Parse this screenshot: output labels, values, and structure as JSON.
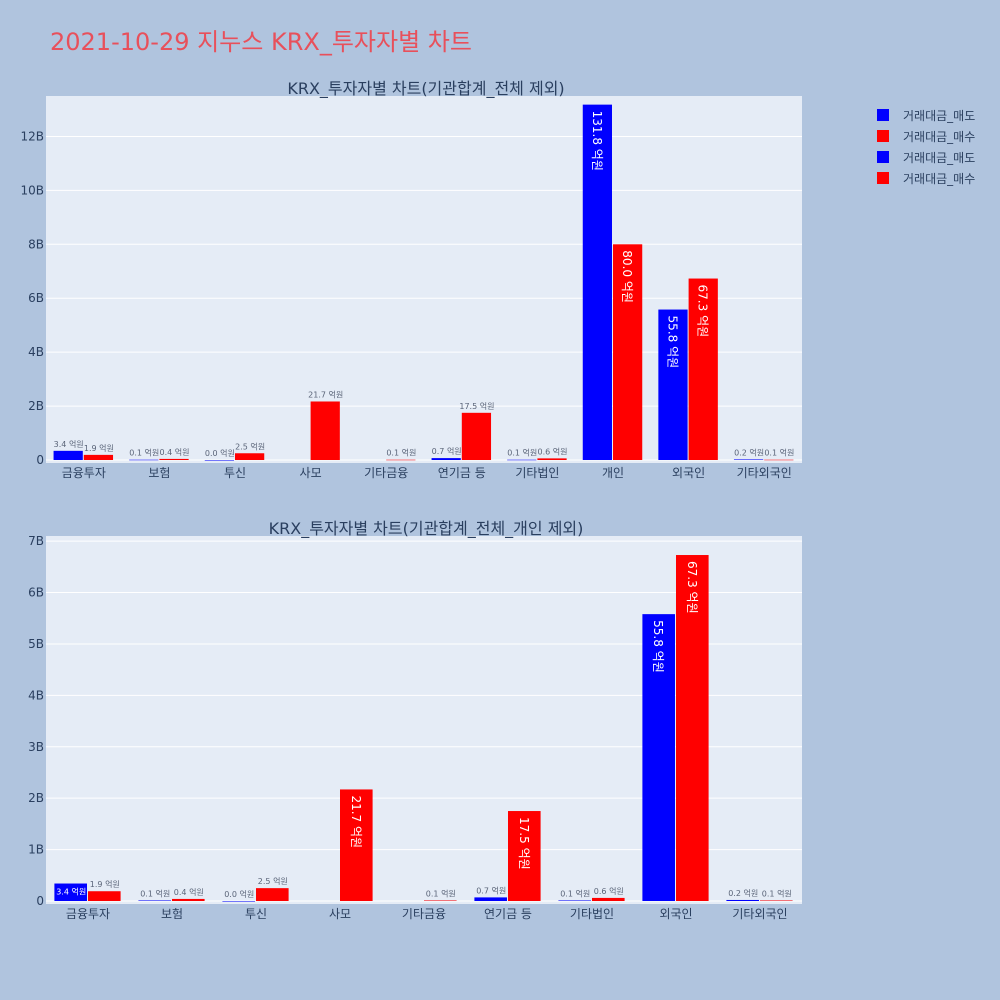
{
  "title": "2021-10-29 지누스 KRX_투자자별 차트",
  "colors": {
    "sell": "#0000ff",
    "buy": "#ff0000",
    "background": "#b0c4de",
    "plot_bg": "#e5ecf6",
    "title": "#e8505b"
  },
  "legend": [
    "거래대금_매도",
    "거래대금_매수",
    "거래대금_매도",
    "거래대금_매수"
  ],
  "chart_data": [
    {
      "type": "bar",
      "title": "KRX_투자자별 차트(기관합계_전체 제외)",
      "categories": [
        "금융투자",
        "보험",
        "투신",
        "사모",
        "기타금융",
        "연기금 등",
        "기타법인",
        "개인",
        "외국인",
        "기타외국인"
      ],
      "ylim": [
        0,
        13.5
      ],
      "yticks": [
        0,
        2,
        4,
        6,
        8,
        10,
        12
      ],
      "ytick_labels": [
        "0",
        "2B",
        "4B",
        "6B",
        "8B",
        "10B",
        "12B"
      ],
      "series": [
        {
          "name": "거래대금_매도",
          "values": [
            0.34,
            0.01,
            0.0,
            null,
            null,
            0.07,
            0.01,
            13.18,
            5.58,
            0.02
          ],
          "labels": [
            "3.4 억원",
            "0.1 억원",
            "0.0 억원",
            "",
            "",
            "0.7 억원",
            "0.1 억원",
            "131.8 억원",
            "55.8 억원",
            "0.2 억원"
          ]
        },
        {
          "name": "거래대금_매수",
          "values": [
            0.19,
            0.04,
            0.25,
            2.17,
            0.01,
            1.75,
            0.06,
            8.0,
            6.73,
            0.01
          ],
          "labels": [
            "1.9 억원",
            "0.4 억원",
            "2.5 억원",
            "21.7 억원",
            "0.1 억원",
            "17.5 억원",
            "0.6 억원",
            "80.0 억원",
            "67.3 억원",
            "0.1 억원"
          ]
        }
      ]
    },
    {
      "type": "bar",
      "title": "KRX_투자자별 차트(기관합계_전체_개인 제외)",
      "categories": [
        "금융투자",
        "보험",
        "투신",
        "사모",
        "기타금융",
        "연기금 등",
        "기타법인",
        "외국인",
        "기타외국인"
      ],
      "ylim": [
        0,
        7.1
      ],
      "yticks": [
        0,
        1,
        2,
        3,
        4,
        5,
        6,
        7
      ],
      "ytick_labels": [
        "0",
        "1B",
        "2B",
        "3B",
        "4B",
        "5B",
        "6B",
        "7B"
      ],
      "series": [
        {
          "name": "거래대금_매도",
          "values": [
            0.34,
            0.01,
            0.0,
            null,
            null,
            0.07,
            0.01,
            5.58,
            0.02
          ],
          "labels": [
            "3.4 억원",
            "0.1 억원",
            "0.0 억원",
            "",
            "",
            "0.7 억원",
            "0.1 억원",
            "55.8 억원",
            "0.2 억원"
          ]
        },
        {
          "name": "거래대금_매수",
          "values": [
            0.19,
            0.04,
            0.25,
            2.17,
            0.01,
            1.75,
            0.06,
            6.73,
            0.01
          ],
          "labels": [
            "1.9 억원",
            "0.4 억원",
            "2.5 억원",
            "21.7 억원",
            "0.1 억원",
            "17.5 억원",
            "0.6 억원",
            "67.3 억원",
            "0.1 억원"
          ]
        }
      ]
    }
  ]
}
